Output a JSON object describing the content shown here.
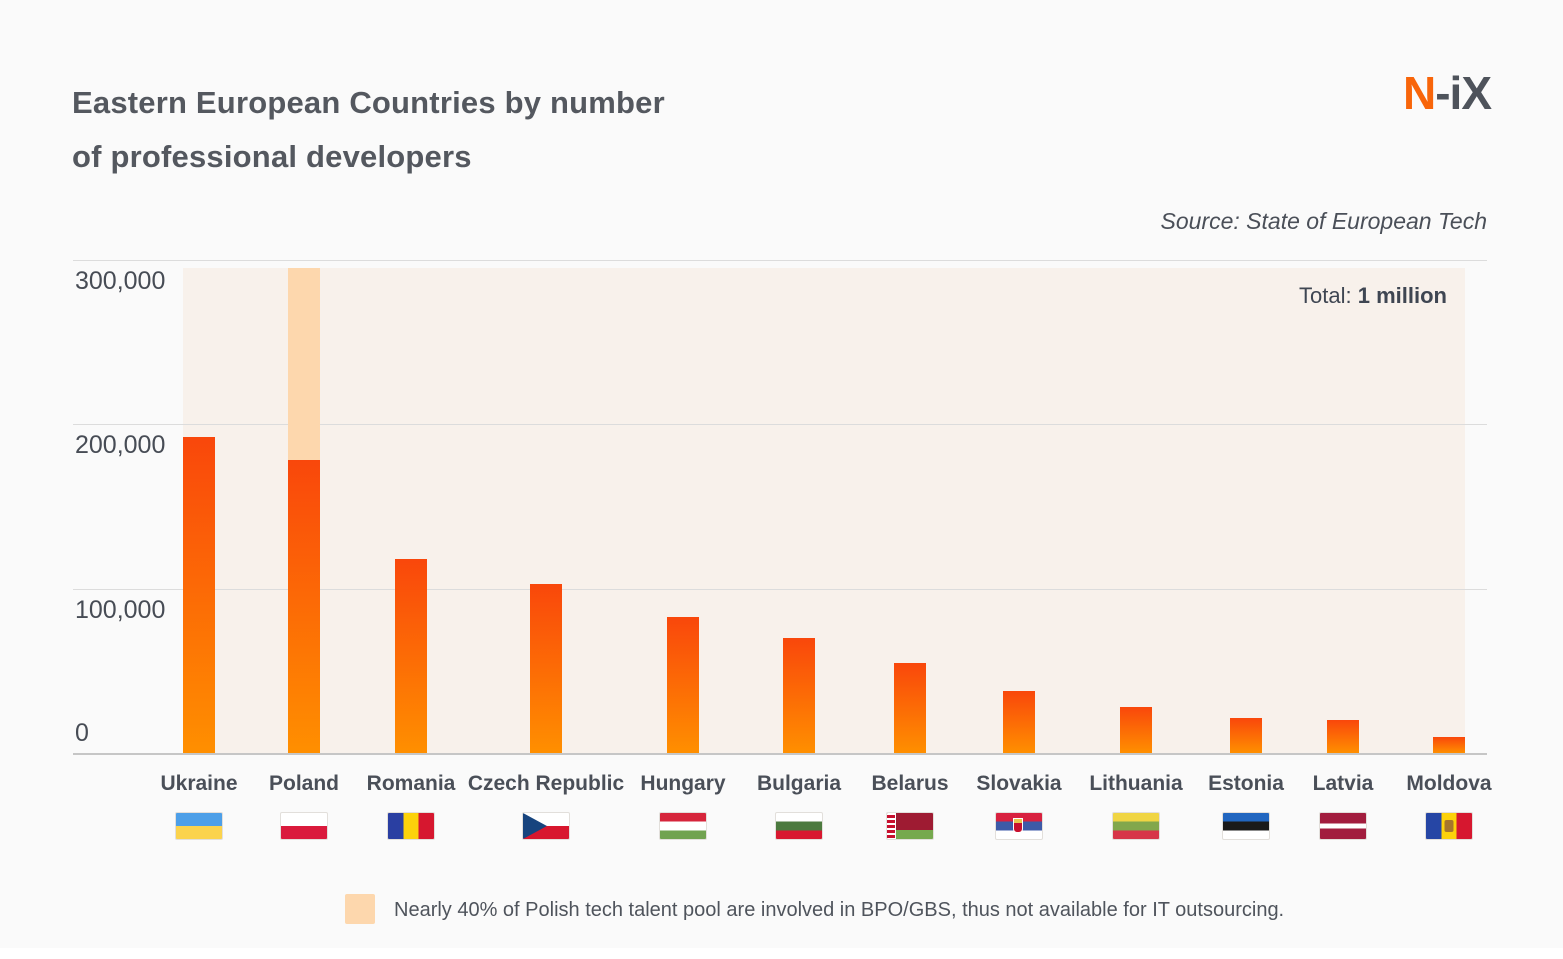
{
  "header": {
    "title_line1": "Eastern European Countries by number",
    "title_line2": "of professional developers",
    "logo_prefix": "N",
    "logo_suffix": "-iX",
    "source": "Source: State of European Tech"
  },
  "chart_data": {
    "type": "bar",
    "title": "Eastern European Countries by number of professional developers",
    "total_label": "Total: ",
    "total_value": "1 million",
    "ylim": [
      0,
      300000
    ],
    "grid": true,
    "yticks": [
      {
        "label": "300,000",
        "value": 300000
      },
      {
        "label": "200,000",
        "value": 200000
      },
      {
        "label": "100,000",
        "value": 100000
      },
      {
        "label": "0",
        "value": 0
      }
    ],
    "categories": [
      "Ukraine",
      "Poland",
      "Romania",
      "Czech Republic",
      "Hungary",
      "Bulgaria",
      "Belarus",
      "Slovakia",
      "Lithuania",
      "Estonia",
      "Latvia",
      "Moldova"
    ],
    "values": [
      192000,
      178000,
      118000,
      103000,
      83000,
      70000,
      55000,
      38000,
      28000,
      21000,
      20000,
      10000
    ],
    "poland_bpo_segment": {
      "country": "Poland",
      "total_including_bpo": 295000
    },
    "flags": [
      "ukraine-flag",
      "poland-flag",
      "romania-flag",
      "czech-republic-flag",
      "hungary-flag",
      "bulgaria-flag",
      "belarus-flag",
      "slovakia-flag",
      "lithuania-flag",
      "estonia-flag",
      "latvia-flag",
      "moldova-flag"
    ],
    "colors": {
      "bar_gradient_top": "#F9470B",
      "bar_gradient_bottom": "#FF8F00",
      "bpo_segment": "#FDD7AD",
      "plot_background": "#F8F1EB",
      "page_background": "#FAFAFA",
      "logo_orange": "#F8650A"
    }
  },
  "footnote": {
    "text": "Nearly 40% of Polish tech talent pool are involved in BPO/GBS, thus not available for IT outsourcing."
  }
}
